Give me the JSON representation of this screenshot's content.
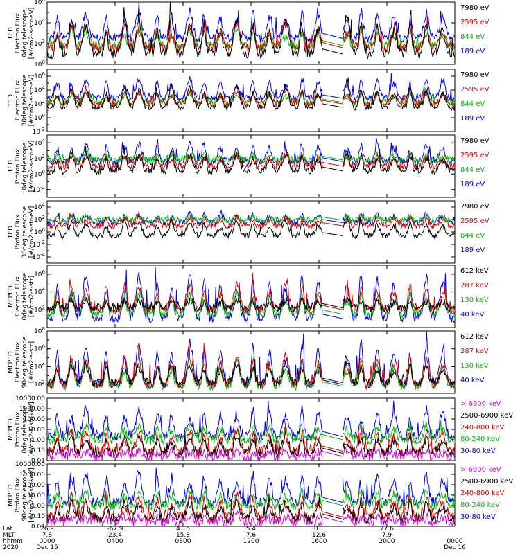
{
  "panels": [
    {
      "id": "ted-e-0deg",
      "ylabel": [
        "TED",
        "Electron Flux",
        "0deg telescope",
        "[#/cm2-s-str-eV]"
      ],
      "ytick_labels": [
        "10^0",
        "10^2",
        "10^4",
        "10^6"
      ],
      "yaxis": {
        "scale": "log",
        "min_exp": 0,
        "max_exp": 6
      },
      "legend": [
        {
          "label": "7980 eV",
          "color": "#000000"
        },
        {
          "label": "2595 eV",
          "color": "#e00000"
        },
        {
          "label": "844 eV",
          "color": "#00bb00"
        },
        {
          "label": "189 eV",
          "color": "#0000ee"
        }
      ],
      "series_levels": [
        {
          "base": 1.0,
          "peak": 4.8
        },
        {
          "base": 1.6,
          "peak": 4.0
        },
        {
          "base": 1.8,
          "peak": 3.4
        },
        {
          "base": 2.5,
          "peak": 5.3
        }
      ]
    },
    {
      "id": "ted-e-30deg",
      "ylabel": [
        "TED",
        "Electron Flux",
        "30deg telescope",
        "[#/cm2-s-str-eV]"
      ],
      "ytick_labels": [
        "10^-2",
        "10^0",
        "10^2",
        "10^4",
        "10^6"
      ],
      "yaxis": {
        "scale": "log",
        "min_exp": -2,
        "max_exp": 7
      },
      "legend": [
        {
          "label": "7980 eV",
          "color": "#000000"
        },
        {
          "label": "2595 eV",
          "color": "#e00000"
        },
        {
          "label": "844 eV",
          "color": "#00bb00"
        },
        {
          "label": "189 eV",
          "color": "#0000ee"
        }
      ],
      "series_levels": [
        {
          "base": 1.5,
          "peak": 4.8
        },
        {
          "base": 2.0,
          "peak": 4.0
        },
        {
          "base": 2.2,
          "peak": 3.7
        },
        {
          "base": 2.8,
          "peak": 5.8
        }
      ]
    },
    {
      "id": "ted-p-0deg",
      "ylabel": [
        "TED",
        "Proton Flux",
        "0deg telescope",
        "[#/cm2-s-str-eV]"
      ],
      "ytick_labels": [
        "10^-2",
        "10^0",
        "10^2",
        "10^4"
      ],
      "yaxis": {
        "scale": "log",
        "min_exp": -3,
        "max_exp": 5
      },
      "legend": [
        {
          "label": "7980 eV",
          "color": "#000000"
        },
        {
          "label": "2595 eV",
          "color": "#e00000"
        },
        {
          "label": "844 eV",
          "color": "#00bb00"
        },
        {
          "label": "189 eV",
          "color": "#0000ee"
        }
      ],
      "series_levels": [
        {
          "base": 0.4,
          "peak": 2.8
        },
        {
          "base": 1.0,
          "peak": 2.5
        },
        {
          "base": 1.8,
          "peak": 2.6
        },
        {
          "base": 1.6,
          "peak": 4.0
        }
      ]
    },
    {
      "id": "ted-p-30deg",
      "ylabel": [
        "TED",
        "Proton Flux",
        "30deg telescope",
        "[#/cm2-s-str-eV]"
      ],
      "ytick_labels": [
        "10^-4",
        "10^-2",
        "10^0",
        "10^2",
        "10^4"
      ],
      "yaxis": {
        "scale": "log",
        "min_exp": -5,
        "max_exp": 5
      },
      "legend": [
        {
          "label": "7980 eV",
          "color": "#000000"
        },
        {
          "label": "2595 eV",
          "color": "#e00000"
        },
        {
          "label": "844 eV",
          "color": "#00bb00"
        },
        {
          "label": "189 eV",
          "color": "#0000ee"
        }
      ],
      "series_levels": [
        {
          "base": -0.6,
          "peak": 2.0
        },
        {
          "base": 1.0,
          "peak": 2.4
        },
        {
          "base": 1.9,
          "peak": 2.5
        },
        {
          "base": 1.5,
          "peak": 3.0
        }
      ]
    },
    {
      "id": "meped-e-0deg",
      "ylabel": [
        "MEPED",
        "Electron Flux",
        "0deg telescope",
        "[#/cm2-s-str]"
      ],
      "ytick_labels": [
        "10^2",
        "10^4",
        "10^6"
      ],
      "yaxis": {
        "scale": "log",
        "min_exp": 0,
        "max_exp": 7
      },
      "legend": [
        {
          "label": "612 keV",
          "color": "#000000"
        },
        {
          "label": "287 keV",
          "color": "#e00000"
        },
        {
          "label": "130 keV",
          "color": "#00bb00"
        },
        {
          "label": "40 keV",
          "color": "#0000ee"
        }
      ],
      "series_levels": [
        {
          "base": 2.2,
          "peak": 3.2
        },
        {
          "base": 2.0,
          "peak": 5.0
        },
        {
          "base": 1.5,
          "peak": 4.0
        },
        {
          "base": 1.0,
          "peak": 6.4
        }
      ]
    },
    {
      "id": "meped-e-90deg",
      "ylabel": [
        "MEPED",
        "Electron Flux",
        "90deg telescope",
        "[#/cm2-s-str]"
      ],
      "ytick_labels": [
        "10^2",
        "10^4",
        "10^6",
        "10^8"
      ],
      "yaxis": {
        "scale": "log",
        "min_exp": 1,
        "max_exp": 8
      },
      "legend": [
        {
          "label": "612 keV",
          "color": "#000000"
        },
        {
          "label": "287 keV",
          "color": "#e00000"
        },
        {
          "label": "130 keV",
          "color": "#00bb00"
        },
        {
          "label": "40 keV",
          "color": "#0000ee"
        }
      ],
      "series_levels": [
        {
          "base": 2.2,
          "peak": 4.5
        },
        {
          "base": 2.0,
          "peak": 5.5
        },
        {
          "base": 1.8,
          "peak": 4.8
        },
        {
          "base": 2.0,
          "peak": 7.0
        }
      ]
    },
    {
      "id": "meped-p-0deg",
      "ylabel": [
        "MEPED",
        "Proton Flux",
        "0deg telescope",
        "[#/cm2-s-str-keV]"
      ],
      "ytick_labels": [
        "0.01",
        "0.10",
        "1.00",
        "10.00",
        "100.00",
        "1000.00",
        "10000.00"
      ],
      "yaxis": {
        "scale": "log",
        "min_exp": -2,
        "max_exp": 4
      },
      "legend": [
        {
          "label": "> 6900 keV",
          "color": "#dd00dd"
        },
        {
          "label": "2500-6900 keV",
          "color": "#000000"
        },
        {
          "label": "240-800 keV",
          "color": "#e00000"
        },
        {
          "label": "80-240 keV",
          "color": "#00bb00"
        },
        {
          "label": "30-80 keV",
          "color": "#0000ee"
        }
      ],
      "series_levels": [
        {
          "base": -1.6,
          "peak": -1.0
        },
        {
          "base": -1.3,
          "peak": 0.5
        },
        {
          "base": -1.1,
          "peak": 1.0
        },
        {
          "base": 0.0,
          "peak": 1.5
        },
        {
          "base": 0.3,
          "peak": 3.2
        }
      ]
    },
    {
      "id": "meped-p-90deg",
      "ylabel": [
        "MEPED",
        "Proton Flux",
        "90deg telescope",
        "[#/cm2-s-str-keV]"
      ],
      "ytick_labels": [
        "0.01",
        "0.10",
        "1.00",
        "10.00",
        "100.00",
        "1000.00",
        "10000.00"
      ],
      "yaxis": {
        "scale": "log",
        "min_exp": -2,
        "max_exp": 4
      },
      "legend": [
        {
          "label": "> 6900 keV",
          "color": "#dd00dd"
        },
        {
          "label": "2500-6900 keV",
          "color": "#000000"
        },
        {
          "label": "240-800 keV",
          "color": "#e00000"
        },
        {
          "label": "80-240 keV",
          "color": "#00bb00"
        },
        {
          "label": "30-80 keV",
          "color": "#0000ee"
        }
      ],
      "series_levels": [
        {
          "base": -1.6,
          "peak": -1.0
        },
        {
          "base": -1.3,
          "peak": 0.5
        },
        {
          "base": -1.1,
          "peak": 1.0
        },
        {
          "base": 0.0,
          "peak": 1.5
        },
        {
          "base": 0.3,
          "peak": 3.2
        }
      ]
    }
  ],
  "time_axis": {
    "row_labels": [
      "Lat",
      "MLT",
      "hhmm",
      "2020"
    ],
    "ticks": [
      {
        "t": 0.0,
        "lat": "26.9",
        "mlt": "7.8",
        "hhmm": "0000",
        "date": "Dec 15"
      },
      {
        "t": 0.1667,
        "lat": "-67.9",
        "mlt": "23.4",
        "hhmm": "0400",
        "date": ""
      },
      {
        "t": 0.3333,
        "lat": "41.6",
        "mlt": "15.8",
        "hhmm": "0800",
        "date": ""
      },
      {
        "t": 0.5,
        "lat": "5.4",
        "mlt": "7.6",
        "hhmm": "1200",
        "date": ""
      },
      {
        "t": 0.6667,
        "lat": "0.1",
        "mlt": "12.6",
        "hhmm": "1600",
        "date": ""
      },
      {
        "t": 0.8333,
        "lat": "77.6",
        "mlt": "7.9",
        "hhmm": "2000",
        "date": ""
      },
      {
        "t": 1.0,
        "lat": "",
        "mlt": "",
        "hhmm": "0000",
        "date": "Dec 16"
      }
    ],
    "data_gap": [
      0.675,
      0.725
    ],
    "pass_peaks": [
      0.025,
      0.06,
      0.095,
      0.145,
      0.19,
      0.225,
      0.27,
      0.305,
      0.35,
      0.385,
      0.425,
      0.465,
      0.505,
      0.545,
      0.585,
      0.625,
      0.665,
      0.735,
      0.77,
      0.81,
      0.85,
      0.89,
      0.93,
      0.97
    ]
  },
  "chart_data": {
    "type": "line",
    "title": "",
    "x_axis": {
      "label": "hhmm",
      "range": [
        "Dec 15 0000",
        "Dec 16 0000"
      ],
      "tick_labels": [
        "0000",
        "0400",
        "0800",
        "1200",
        "1600",
        "2000",
        "0000"
      ]
    },
    "note": "8 stacked log-scale time series panels of particle flux; values are schematic envelopes (log10 flux) per channel: quiet baseline and orbital-pass peaks.",
    "panels": [
      {
        "ylabel": "TED Electron Flux 0deg telescope [#/cm2-s-str-eV]",
        "ylim_log10": [
          0,
          6
        ],
        "series": [
          {
            "name": "7980 eV",
            "log10_base": 1.0,
            "log10_peak": 4.8
          },
          {
            "name": "2595 eV",
            "log10_base": 1.6,
            "log10_peak": 4.0
          },
          {
            "name": "844 eV",
            "log10_base": 1.8,
            "log10_peak": 3.4
          },
          {
            "name": "189 eV",
            "log10_base": 2.5,
            "log10_peak": 5.3
          }
        ]
      },
      {
        "ylabel": "TED Electron Flux 30deg telescope [#/cm2-s-str-eV]",
        "ylim_log10": [
          -2,
          7
        ],
        "series": [
          {
            "name": "7980 eV",
            "log10_base": 1.5,
            "log10_peak": 4.8
          },
          {
            "name": "2595 eV",
            "log10_base": 2.0,
            "log10_peak": 4.0
          },
          {
            "name": "844 eV",
            "log10_base": 2.2,
            "log10_peak": 3.7
          },
          {
            "name": "189 eV",
            "log10_base": 2.8,
            "log10_peak": 5.8
          }
        ]
      },
      {
        "ylabel": "TED Proton Flux 0deg telescope [#/cm2-s-str-eV]",
        "ylim_log10": [
          -3,
          5
        ],
        "series": [
          {
            "name": "7980 eV",
            "log10_base": 0.4,
            "log10_peak": 2.8
          },
          {
            "name": "2595 eV",
            "log10_base": 1.0,
            "log10_peak": 2.5
          },
          {
            "name": "844 eV",
            "log10_base": 1.8,
            "log10_peak": 2.6
          },
          {
            "name": "189 eV",
            "log10_base": 1.6,
            "log10_peak": 4.0
          }
        ]
      },
      {
        "ylabel": "TED Proton Flux 30deg telescope [#/cm2-s-str-eV]",
        "ylim_log10": [
          -5,
          5
        ],
        "series": [
          {
            "name": "7980 eV",
            "log10_base": -0.6,
            "log10_peak": 2.0
          },
          {
            "name": "2595 eV",
            "log10_base": 1.0,
            "log10_peak": 2.4
          },
          {
            "name": "844 eV",
            "log10_base": 1.9,
            "log10_peak": 2.5
          },
          {
            "name": "189 eV",
            "log10_base": 1.5,
            "log10_peak": 3.0
          }
        ]
      },
      {
        "ylabel": "MEPED Electron Flux 0deg telescope [#/cm2-s-str]",
        "ylim_log10": [
          0,
          7
        ],
        "series": [
          {
            "name": "612 keV",
            "log10_base": 2.2,
            "log10_peak": 3.2
          },
          {
            "name": "287 keV",
            "log10_base": 2.0,
            "log10_peak": 5.0
          },
          {
            "name": "130 keV",
            "log10_base": 1.5,
            "log10_peak": 4.0
          },
          {
            "name": "40 keV",
            "log10_base": 1.0,
            "log10_peak": 6.4
          }
        ]
      },
      {
        "ylabel": "MEPED Electron Flux 90deg telescope [#/cm2-s-str]",
        "ylim_log10": [
          1,
          8
        ],
        "series": [
          {
            "name": "612 keV",
            "log10_base": 2.2,
            "log10_peak": 4.5
          },
          {
            "name": "287 keV",
            "log10_base": 2.0,
            "log10_peak": 5.5
          },
          {
            "name": "130 keV",
            "log10_base": 1.8,
            "log10_peak": 4.8
          },
          {
            "name": "40 keV",
            "log10_base": 2.0,
            "log10_peak": 7.0
          }
        ]
      },
      {
        "ylabel": "MEPED Proton Flux 0deg telescope [#/cm2-s-str-keV]",
        "ylim": [
          0.01,
          10000
        ],
        "series": [
          {
            "name": "> 6900 keV",
            "log10_base": -1.6,
            "log10_peak": -1.0
          },
          {
            "name": "2500-6900 keV",
            "log10_base": -1.3,
            "log10_peak": 0.5
          },
          {
            "name": "240-800 keV",
            "log10_base": -1.1,
            "log10_peak": 1.0
          },
          {
            "name": "80-240 keV",
            "log10_base": 0.0,
            "log10_peak": 1.5
          },
          {
            "name": "30-80 keV",
            "log10_base": 0.3,
            "log10_peak": 3.2
          }
        ]
      },
      {
        "ylabel": "MEPED Proton Flux 90deg telescope [#/cm2-s-str-keV]",
        "ylim": [
          0.01,
          10000
        ],
        "series": [
          {
            "name": "> 6900 keV",
            "log10_base": -1.6,
            "log10_peak": -1.0
          },
          {
            "name": "2500-6900 keV",
            "log10_base": -1.3,
            "log10_peak": 0.5
          },
          {
            "name": "240-800 keV",
            "log10_base": -1.1,
            "log10_peak": 1.0
          },
          {
            "name": "80-240 keV",
            "log10_base": 0.0,
            "log10_peak": 1.5
          },
          {
            "name": "30-80 keV",
            "log10_base": 0.3,
            "log10_peak": 3.2
          }
        ]
      }
    ]
  }
}
